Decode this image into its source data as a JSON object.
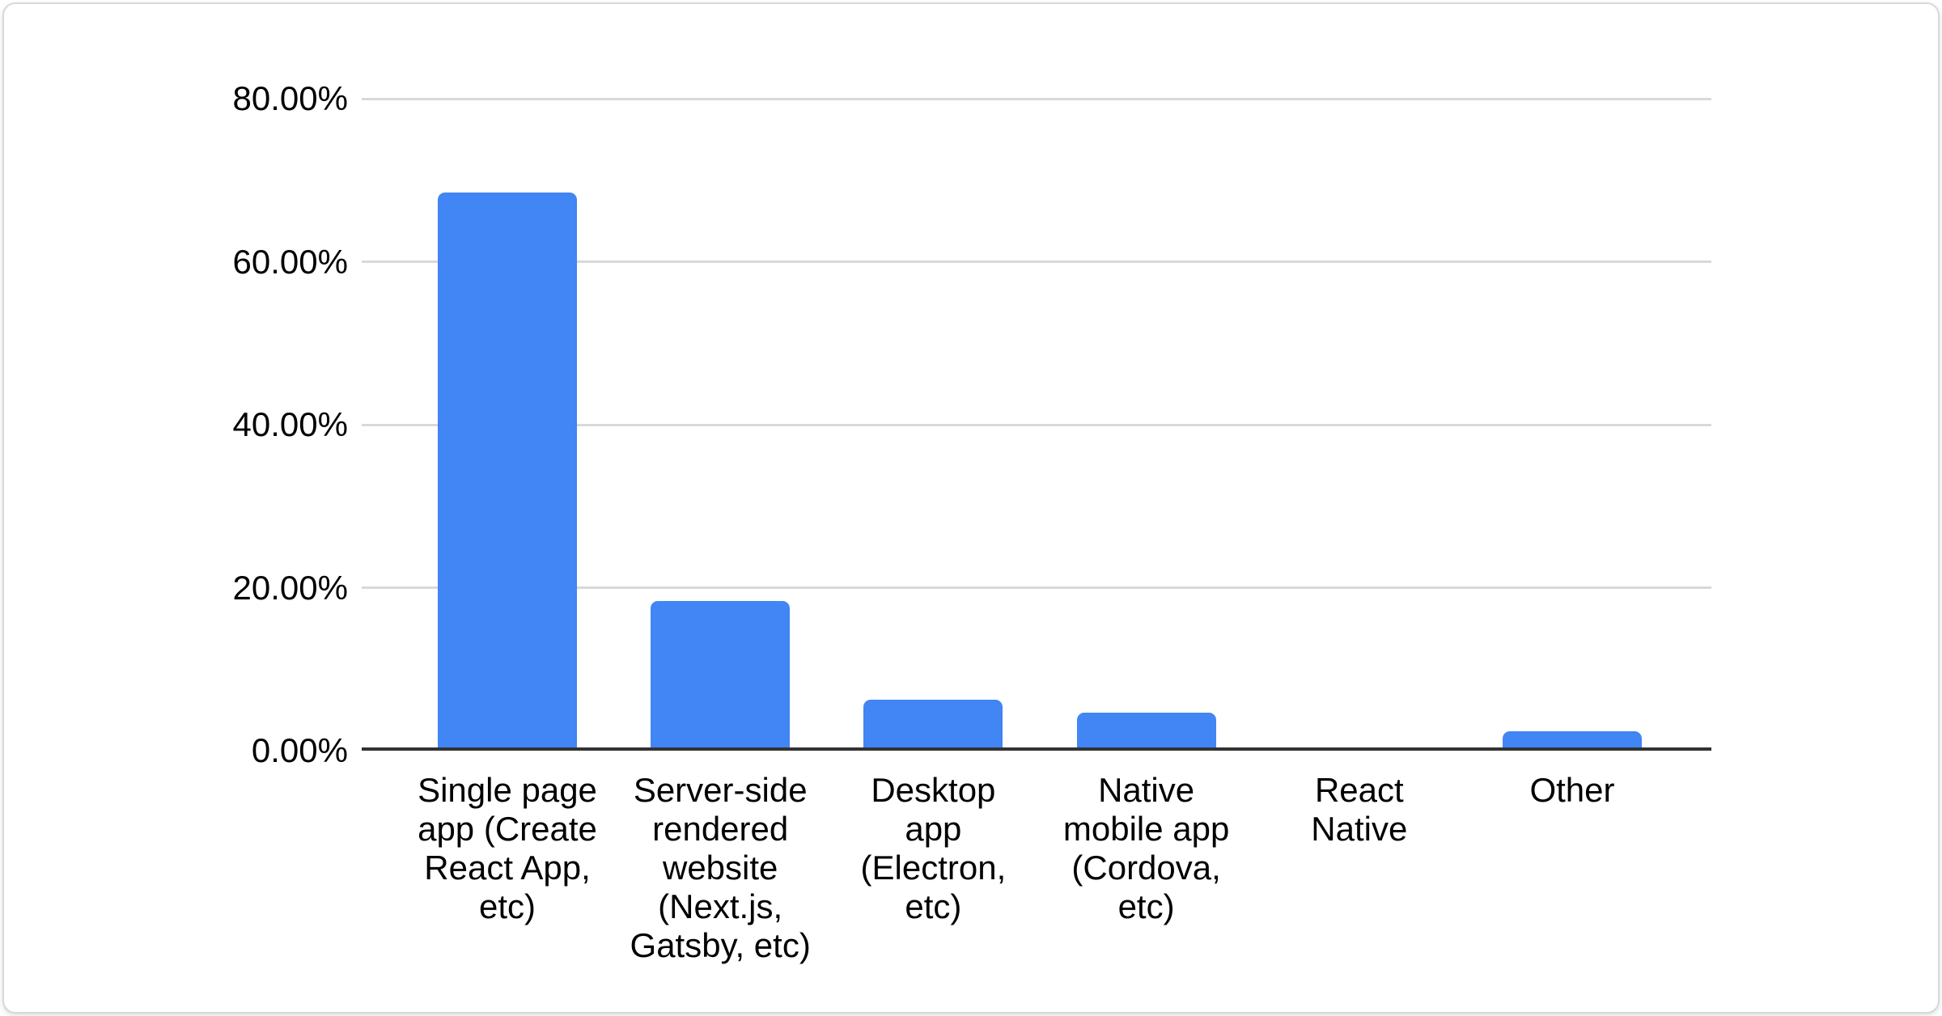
{
  "page": {
    "background": "#ffffff"
  },
  "chart_data": {
    "type": "bar",
    "title": "",
    "xlabel": "",
    "ylabel": "",
    "categories": [
      "Single page app (Create React App, etc)",
      "Server-side rendered website (Next.js, Gatsby, etc)",
      "Desktop app (Electron, etc)",
      "Native mobile app (Cordova, etc)",
      "React Native",
      "Other"
    ],
    "category_label_lines": [
      [
        "Single page",
        "app (Create",
        "React App,",
        "etc)"
      ],
      [
        "Server-side",
        "rendered",
        "website",
        "(Next.js,",
        "Gatsby, etc)"
      ],
      [
        "Desktop",
        "app",
        "(Electron,",
        "etc)"
      ],
      [
        "Native",
        "mobile app",
        "(Cordova,",
        "etc)"
      ],
      [
        "React",
        "Native"
      ],
      [
        "Other"
      ]
    ],
    "values": [
      68.5,
      18.4,
      6.3,
      4.7,
      0,
      2.4
    ],
    "ylim": [
      0,
      80
    ],
    "y_tick_labels": [
      "0.00%",
      "20.00%",
      "40.00%",
      "60.00%",
      "80.00%"
    ],
    "grid": true,
    "legend": "none",
    "colors": {
      "bar": "#4285f4",
      "gridline": "#d9d9d9",
      "axis_line": "#333333",
      "label_text": "#000000",
      "card_background": "#ffffff",
      "card_border": "#d9d9d9"
    }
  }
}
